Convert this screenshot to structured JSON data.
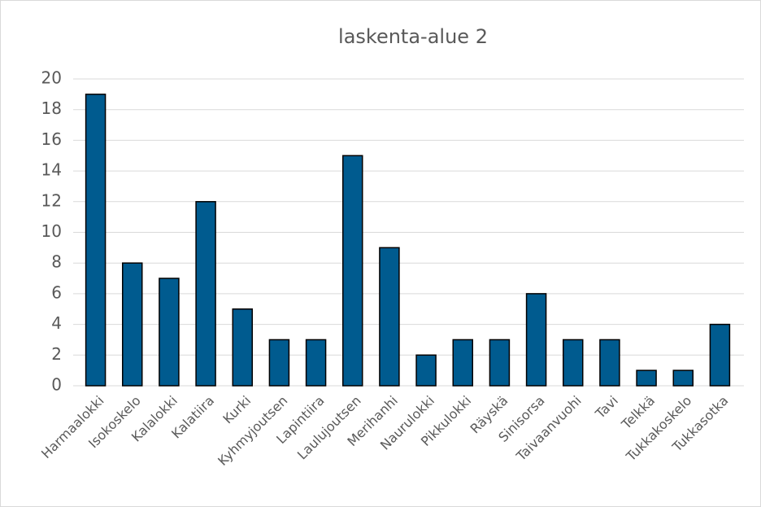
{
  "chart_data": {
    "type": "bar",
    "title": "laskenta-alue 2",
    "categories": [
      "Harmaalokki",
      "Isokoskelo",
      "Kalalokki",
      "Kalatiira",
      "Kurki",
      "Kyhmyjoutsen",
      "Lapintiira",
      "Laulujoutsen",
      "Merihanhi",
      "Naurulokki",
      "Pikkulokki",
      "Räyskä",
      "Sinisorsa",
      "Taivaanvuohi",
      "Tavi",
      "Telkkä",
      "Tukkakoskelo",
      "Tukkasotka"
    ],
    "values": [
      19,
      8,
      7,
      12,
      5,
      3,
      3,
      15,
      9,
      2,
      3,
      3,
      6,
      3,
      3,
      1,
      1,
      4
    ],
    "color": "#005b8f",
    "ylim": [
      0,
      20
    ],
    "yticks": [
      0,
      2,
      4,
      6,
      8,
      10,
      12,
      14,
      16,
      18,
      20
    ],
    "grid": true
  }
}
